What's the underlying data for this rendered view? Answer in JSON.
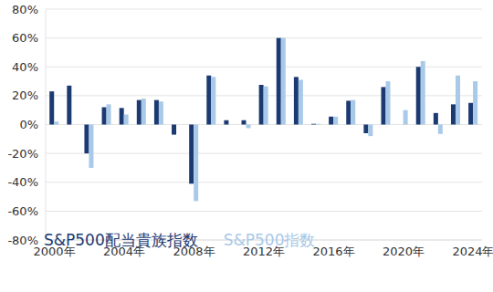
{
  "chart_data": {
    "type": "bar",
    "categories": [
      "2000年",
      null,
      null,
      null,
      "2004年",
      null,
      null,
      null,
      "2008年",
      null,
      null,
      null,
      "2012年",
      null,
      null,
      null,
      "2016年",
      null,
      null,
      null,
      "2020年",
      null,
      null,
      null,
      "2024年"
    ],
    "series": [
      {
        "name": "S&P500配当貴族指数",
        "color": "#1c3a72",
        "values": [
          23,
          27,
          -20,
          12,
          11.5,
          17,
          17,
          -7,
          -41,
          34,
          3,
          3,
          27.5,
          60,
          33,
          0.5,
          5.5,
          16.5,
          -6,
          26,
          0,
          40,
          8,
          14,
          15
        ]
      },
      {
        "name": "S&P500指数",
        "color": "#a9c9e8",
        "values": [
          2,
          0,
          -30,
          14,
          7,
          18,
          16,
          0,
          -53,
          33,
          0,
          -2.5,
          26.5,
          60,
          31,
          0.5,
          5.5,
          17,
          -8,
          30,
          10,
          44,
          -6.5,
          34,
          30
        ]
      }
    ],
    "ylim": [
      -80,
      80
    ],
    "yticks": [
      {
        "value": -80,
        "label": "-80%"
      },
      {
        "value": -60,
        "label": "-60%"
      },
      {
        "value": -40,
        "label": "-40%"
      },
      {
        "value": -20,
        "label": "-20%"
      },
      {
        "value": 0,
        "label": "0%"
      },
      {
        "value": 20,
        "label": "20%"
      },
      {
        "value": 40,
        "label": "40%"
      },
      {
        "value": 60,
        "label": "60%"
      },
      {
        "value": 80,
        "label": "80%"
      }
    ],
    "grid": true,
    "legend": "bottom-left"
  }
}
